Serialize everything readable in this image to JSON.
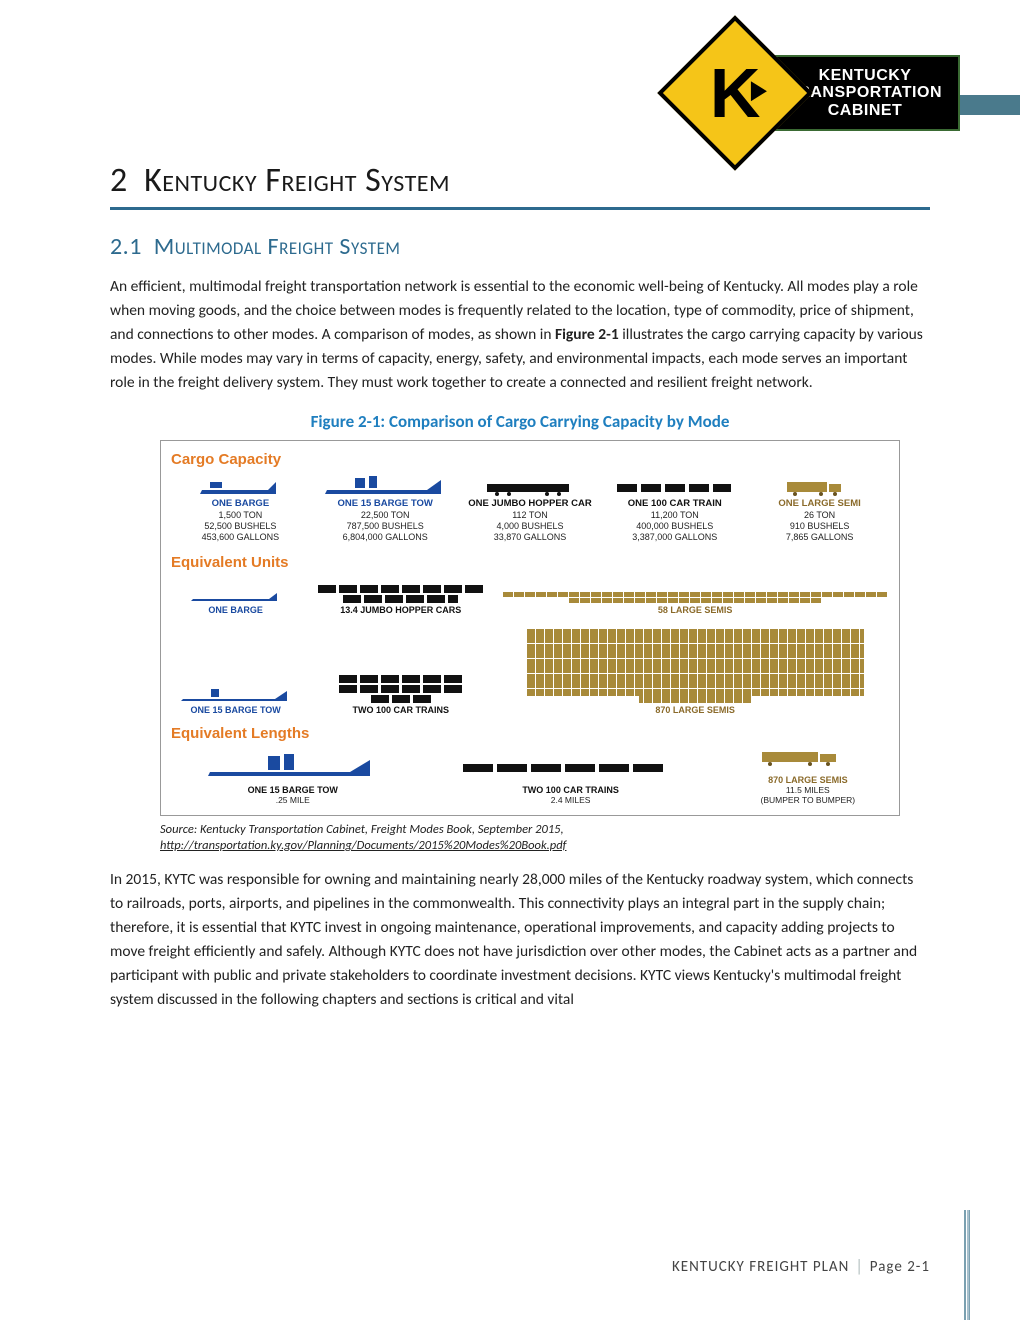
{
  "colors": {
    "accent": "#2d6a8e",
    "link_blue": "#1f7fbf",
    "orange": "#e47b25",
    "barge_blue": "#1a4aa0",
    "rail_black": "#111111",
    "truck_brown": "#8a6a2a",
    "truck_fill": "#a88a3a",
    "header_band": "#4a7a8c",
    "diamond": "#f5c518"
  },
  "logo": {
    "letter": "K",
    "plate_line1": "KENTUCKY",
    "plate_line2": "TRANSPORTATION",
    "plate_line3": "CABINET"
  },
  "chapter": {
    "number": "2",
    "title": "Kentucky Freight System"
  },
  "section": {
    "number": "2.1",
    "title": "Multimodal Freight System"
  },
  "para1_a": "An efficient, multimodal freight transportation network is essential to the economic well-being of Kentucky. All modes play a role when moving goods, and the choice between modes is frequently related to the location, type of commodity, price of shipment, and connections to other modes. A comparison of modes, as shown in ",
  "para1_bold": "Figure 2-1",
  "para1_b": " illustrates the cargo carrying capacity by various modes. While modes may vary in terms of capacity, energy, safety, and environmental impacts, each mode serves an important role in the freight delivery system. They must work together to create a connected and resilient freight network.",
  "figure": {
    "title": "Figure 2-1: Comparison of Cargo Carrying Capacity by Mode",
    "heads": {
      "capacity": "Cargo Capacity",
      "units": "Equivalent Units",
      "lengths": "Equivalent Lengths"
    },
    "capacity_modes": [
      {
        "name": "ONE BARGE",
        "tons": "1,500 TON",
        "bushels": "52,500 BUSHELS",
        "gallons": "453,600 GALLONS",
        "color": "blue"
      },
      {
        "name": "ONE 15 BARGE TOW",
        "tons": "22,500 TON",
        "bushels": "787,500 BUSHELS",
        "gallons": "6,804,000 GALLONS",
        "color": "blue"
      },
      {
        "name": "ONE JUMBO HOPPER CAR",
        "tons": "112 TON",
        "bushels": "4,000 BUSHELS",
        "gallons": "33,870 GALLONS",
        "color": "black"
      },
      {
        "name": "ONE 100 CAR TRAIN",
        "tons": "11,200 TON",
        "bushels": "400,000 BUSHELS",
        "gallons": "3,387,000 GALLONS",
        "color": "black"
      },
      {
        "name": "ONE LARGE SEMI",
        "tons": "26 TON",
        "bushels": "910 BUSHELS",
        "gallons": "7,865 GALLONS",
        "color": "brown"
      }
    ],
    "equiv_units_1": {
      "left": "ONE BARGE",
      "mid": "13.4 JUMBO HOPPER CARS",
      "right": "58 LARGE SEMIS",
      "right_count": 58
    },
    "equiv_units_2": {
      "left": "ONE 15 BARGE TOW",
      "mid": "TWO 100 CAR TRAINS",
      "right": "870 LARGE SEMIS",
      "right_count": 870
    },
    "equiv_lengths": {
      "left_name": "ONE 15 BARGE TOW",
      "left_len": ".25 MILE",
      "mid_name": "TWO 100 CAR TRAINS",
      "mid_len": "2.4 MILES",
      "right_name": "870 LARGE SEMIS",
      "right_len": "11.5 MILES",
      "right_sub": "(BUMPER TO BUMPER)"
    }
  },
  "source": {
    "text": "Source: Kentucky Transportation Cabinet, Freight Modes Book, September 2015,",
    "url": "http://transportation.ky.gov/Planning/Documents/2015%20Modes%20Book.pdf"
  },
  "para2": "In 2015, KYTC was responsible for owning and maintaining nearly 28,000 miles of the Kentucky roadway system, which connects to railroads, ports, airports, and pipelines in the commonwealth. This connectivity plays an integral part in the supply chain; therefore, it is essential that KYTC invest in ongoing maintenance, operational improvements, and capacity adding projects to move freight efficiently and safely. Although KYTC does not have jurisdiction over other modes, the Cabinet acts as a partner and participant with public and private stakeholders to coordinate investment decisions.  KYTC views Kentucky's multimodal freight system discussed in the following chapters and sections is critical and vital",
  "footer": {
    "doc": "KENTUCKY FREIGHT PLAN",
    "page": "Page 2-1"
  }
}
